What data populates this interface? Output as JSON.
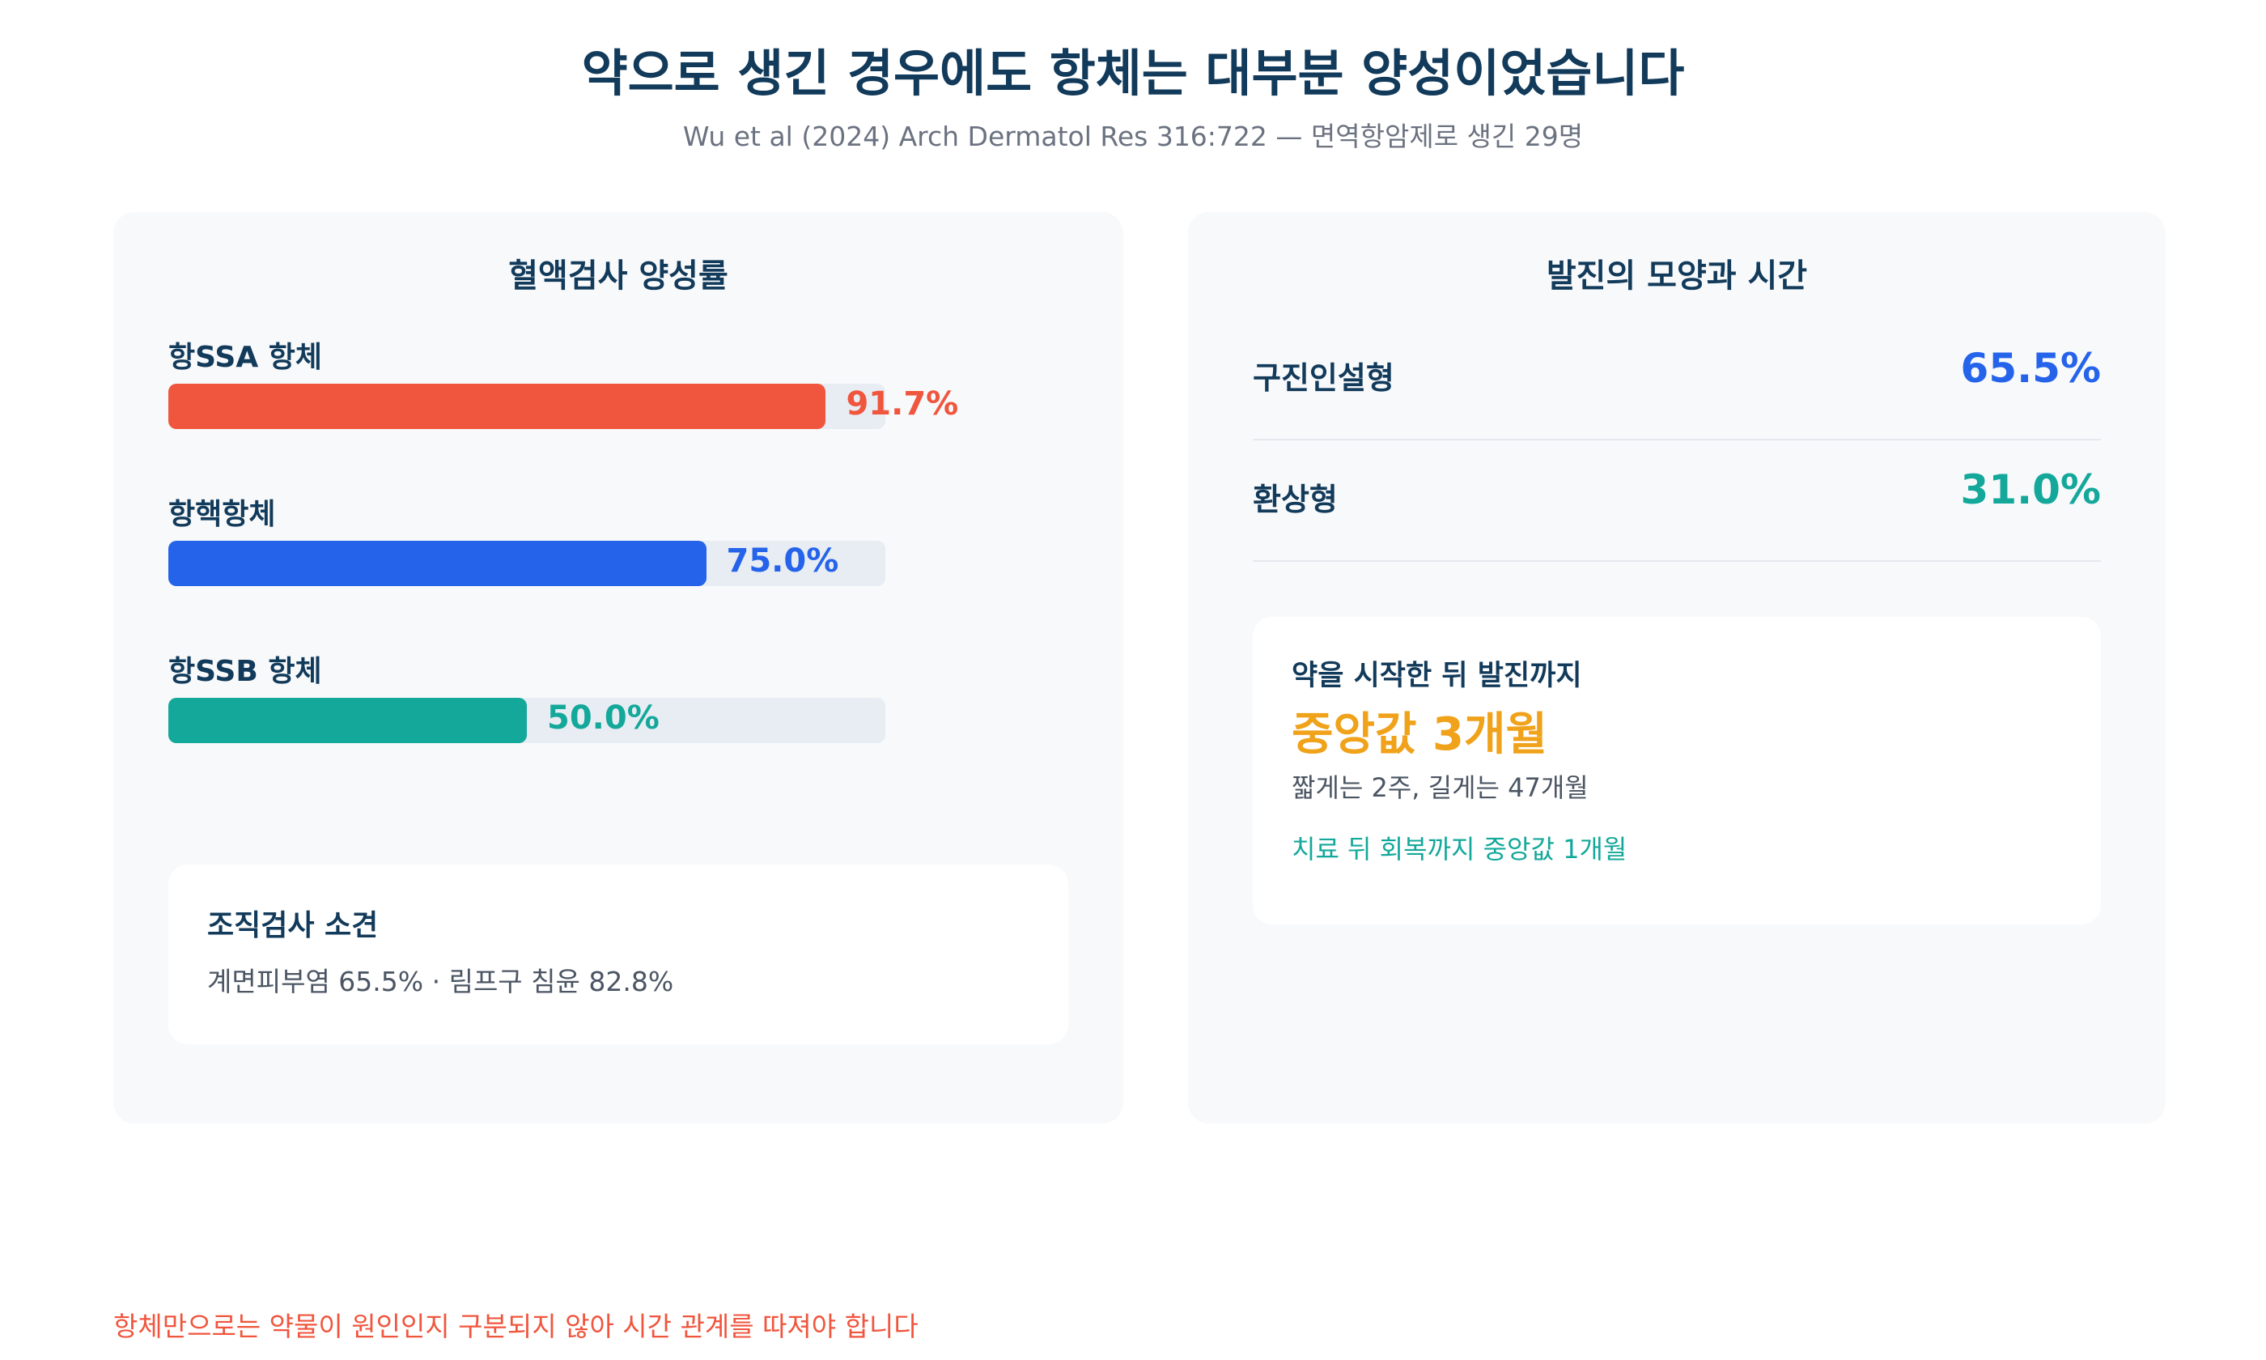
{
  "header": {
    "title": "약으로 생긴 경우에도 항체는 대부분 양성이었습니다",
    "subtitle": "Wu et al (2024) Arch Dermatol Res 316:722 — 면역항암제로 생긴 29명"
  },
  "colors": {
    "red": "#f0553d",
    "blue": "#2563eb",
    "teal": "#14a89b",
    "amber": "#f0a21a",
    "navy": "#123a5a"
  },
  "chart_data": {
    "type": "bar",
    "orientation": "horizontal",
    "title": "혈액검사 양성률",
    "categories": [
      "항SSA 항체",
      "항핵항체",
      "항SSB 항체"
    ],
    "values": [
      91.7,
      75.0,
      50.0
    ],
    "value_labels": [
      "91.7%",
      "75.0%",
      "50.0%"
    ],
    "bar_colors": [
      "#f0553d",
      "#2563eb",
      "#14a89b"
    ],
    "xlim": [
      0,
      100
    ],
    "grid": false,
    "legend": "none"
  },
  "histology": {
    "title": "조직검사 소견",
    "text": "계면피부염 65.5% · 림프구 침윤 82.8%"
  },
  "rash": {
    "title": "발진의 모양과 시간",
    "items": [
      {
        "label": "구진인설형",
        "value": "65.5%",
        "color": "#2563eb"
      },
      {
        "label": "환상형",
        "value": "31.0%",
        "color": "#14a89b"
      }
    ],
    "onset": {
      "title": "약을 시작한 뒤 발진까지",
      "median": "중앙값 3개월",
      "range": "짧게는 2주, 길게는 47개월",
      "recovery": "치료 뒤 회복까지 중앙값 1개월"
    }
  },
  "footnote": "항체만으로는 약물이 원인인지 구분되지 않아 시간 관계를 따져야 합니다"
}
